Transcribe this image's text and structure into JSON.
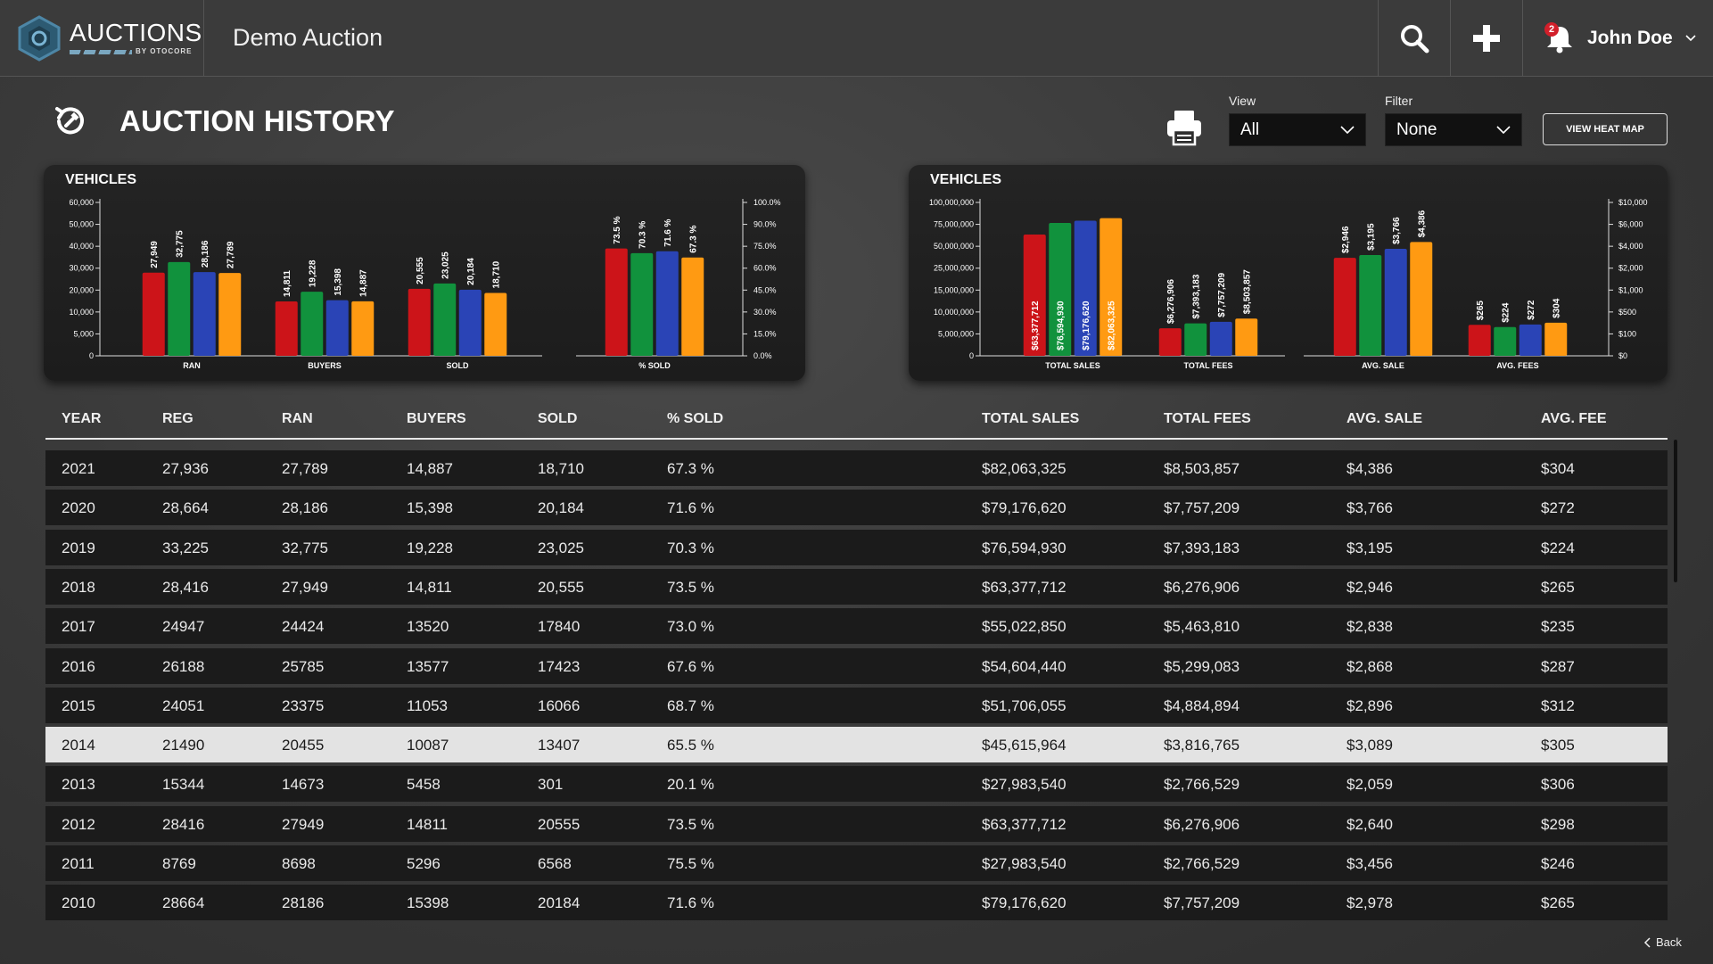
{
  "app": {
    "logo_main": "AUCTIONS",
    "logo_sub": "BY OTOCORE",
    "title": "Demo Auction",
    "notification_count": "2",
    "user_name": "John Doe"
  },
  "page": {
    "title": "AUCTION HISTORY",
    "view_label": "View",
    "view_value": "All",
    "filter_label": "Filter",
    "filter_value": "None",
    "heat_map_button": "VIEW HEAT MAP",
    "back_label": "Back"
  },
  "colors": {
    "series": [
      "#cc1419",
      "#11923d",
      "#2a44b6",
      "#ff9a12"
    ]
  },
  "chart_data": [
    {
      "type": "bar",
      "title": "VEHICLES",
      "categories": [
        "RAN",
        "BUYERS",
        "SOLD"
      ],
      "series": [
        {
          "values": [
            27949,
            14811,
            20555
          ]
        },
        {
          "values": [
            32775,
            19228,
            23025
          ]
        },
        {
          "values": [
            28186,
            15398,
            20184
          ]
        },
        {
          "values": [
            27789,
            14887,
            18710
          ]
        }
      ],
      "data_labels": [
        [
          "27,949",
          "14,811",
          "20,555"
        ],
        [
          "32,775",
          "19,228",
          "23,025"
        ],
        [
          "28,186",
          "15,398",
          "20,184"
        ],
        [
          "27,789",
          "14,887",
          "18,710"
        ]
      ],
      "y_ticks": [
        "0",
        "5,000",
        "10,000",
        "20,000",
        "30,000",
        "40,000",
        "50,000",
        "60,000"
      ],
      "ylim": [
        0,
        60000
      ]
    },
    {
      "type": "bar",
      "categories": [
        "% SOLD"
      ],
      "series": [
        {
          "values": [
            73.5
          ]
        },
        {
          "values": [
            70.3
          ]
        },
        {
          "values": [
            71.6
          ]
        },
        {
          "values": [
            67.3
          ]
        }
      ],
      "data_labels": [
        [
          "73.5 %"
        ],
        [
          "70.3 %"
        ],
        [
          "71.6 %"
        ],
        [
          "67.3 %"
        ]
      ],
      "y_ticks": [
        "0.0%",
        "15.0%",
        "30.0%",
        "45.0%",
        "60.0%",
        "75.0%",
        "90.0%",
        "100.0%"
      ],
      "ylim": [
        0,
        100
      ]
    },
    {
      "type": "bar",
      "title": "VEHICLES",
      "categories": [
        "TOTAL SALES",
        "TOTAL FEES"
      ],
      "series": [
        {
          "values": [
            63377712,
            6276906
          ]
        },
        {
          "values": [
            76594930,
            7393183
          ]
        },
        {
          "values": [
            79176620,
            7757209
          ]
        },
        {
          "values": [
            82063325,
            8503857
          ]
        }
      ],
      "data_labels": [
        [
          "$63,377,712",
          "$6,276,906"
        ],
        [
          "$76,594,930",
          "$7,393,183"
        ],
        [
          "$79,176,620",
          "$7,757,209"
        ],
        [
          "$82,063,325",
          "$8,503,857"
        ]
      ],
      "y_ticks": [
        "0",
        "5,000,000",
        "10,000,000",
        "15,000,000",
        "25,000,000",
        "50,000,000",
        "75,000,000",
        "100,000,000"
      ]
    },
    {
      "type": "bar",
      "categories": [
        "AVG. SALE",
        "AVG. FEES"
      ],
      "series": [
        {
          "values": [
            2946,
            265
          ]
        },
        {
          "values": [
            3195,
            224
          ]
        },
        {
          "values": [
            3766,
            272
          ]
        },
        {
          "values": [
            4386,
            304
          ]
        }
      ],
      "data_labels": [
        [
          "$2,946",
          "$265"
        ],
        [
          "$3,195",
          "$224"
        ],
        [
          "$3,766",
          "$272"
        ],
        [
          "$4,386",
          "$304"
        ]
      ],
      "y_ticks": [
        "$0",
        "$100",
        "$500",
        "$1,000",
        "$2,000",
        "$4,000",
        "$6,000",
        "$10,000"
      ]
    }
  ],
  "table": {
    "headers": [
      "YEAR",
      "REG",
      "RAN",
      "BUYERS",
      "SOLD",
      "% SOLD",
      "TOTAL SALES",
      "TOTAL FEES",
      "AVG. SALE",
      "AVG. FEE"
    ],
    "selected_year": "2014",
    "rows": [
      [
        "2021",
        "27,936",
        "27,789",
        "14,887",
        "18,710",
        "67.3 %",
        "$82,063,325",
        "$8,503,857",
        "$4,386",
        "$304"
      ],
      [
        "2020",
        "28,664",
        "28,186",
        "15,398",
        "20,184",
        "71.6 %",
        "$79,176,620",
        "$7,757,209",
        "$3,766",
        "$272"
      ],
      [
        "2019",
        "33,225",
        "32,775",
        "19,228",
        "23,025",
        "70.3 %",
        "$76,594,930",
        "$7,393,183",
        "$3,195",
        "$224"
      ],
      [
        "2018",
        "28,416",
        "27,949",
        "14,811",
        "20,555",
        "73.5 %",
        "$63,377,712",
        "$6,276,906",
        "$2,946",
        "$265"
      ],
      [
        "2017",
        "24947",
        "24424",
        "13520",
        "17840",
        "73.0 %",
        "$55,022,850",
        "$5,463,810",
        "$2,838",
        "$235"
      ],
      [
        "2016",
        "26188",
        "25785",
        "13577",
        "17423",
        "67.6 %",
        "$54,604,440",
        "$5,299,083",
        "$2,868",
        "$287"
      ],
      [
        "2015",
        "24051",
        "23375",
        "11053",
        "16066",
        "68.7 %",
        "$51,706,055",
        "$4,884,894",
        "$2,896",
        "$312"
      ],
      [
        "2014",
        "21490",
        "20455",
        "10087",
        "13407",
        "65.5 %",
        "$45,615,964",
        "$3,816,765",
        "$3,089",
        "$305"
      ],
      [
        "2013",
        "15344",
        "14673",
        "5458",
        "301",
        "20.1 %",
        "$27,983,540",
        "$2,766,529",
        "$2,059",
        "$306"
      ],
      [
        "2012",
        "28416",
        "27949",
        "14811",
        "20555",
        "73.5 %",
        "$63,377,712",
        "$6,276,906",
        "$2,640",
        "$298"
      ],
      [
        "2011",
        "8769",
        "8698",
        "5296",
        "6568",
        "75.5 %",
        "$27,983,540",
        "$2,766,529",
        "$3,456",
        "$246"
      ],
      [
        "2010",
        "28664",
        "28186",
        "15398",
        "20184",
        "71.6 %",
        "$79,176,620",
        "$7,757,209",
        "$2,978",
        "$265"
      ]
    ]
  }
}
